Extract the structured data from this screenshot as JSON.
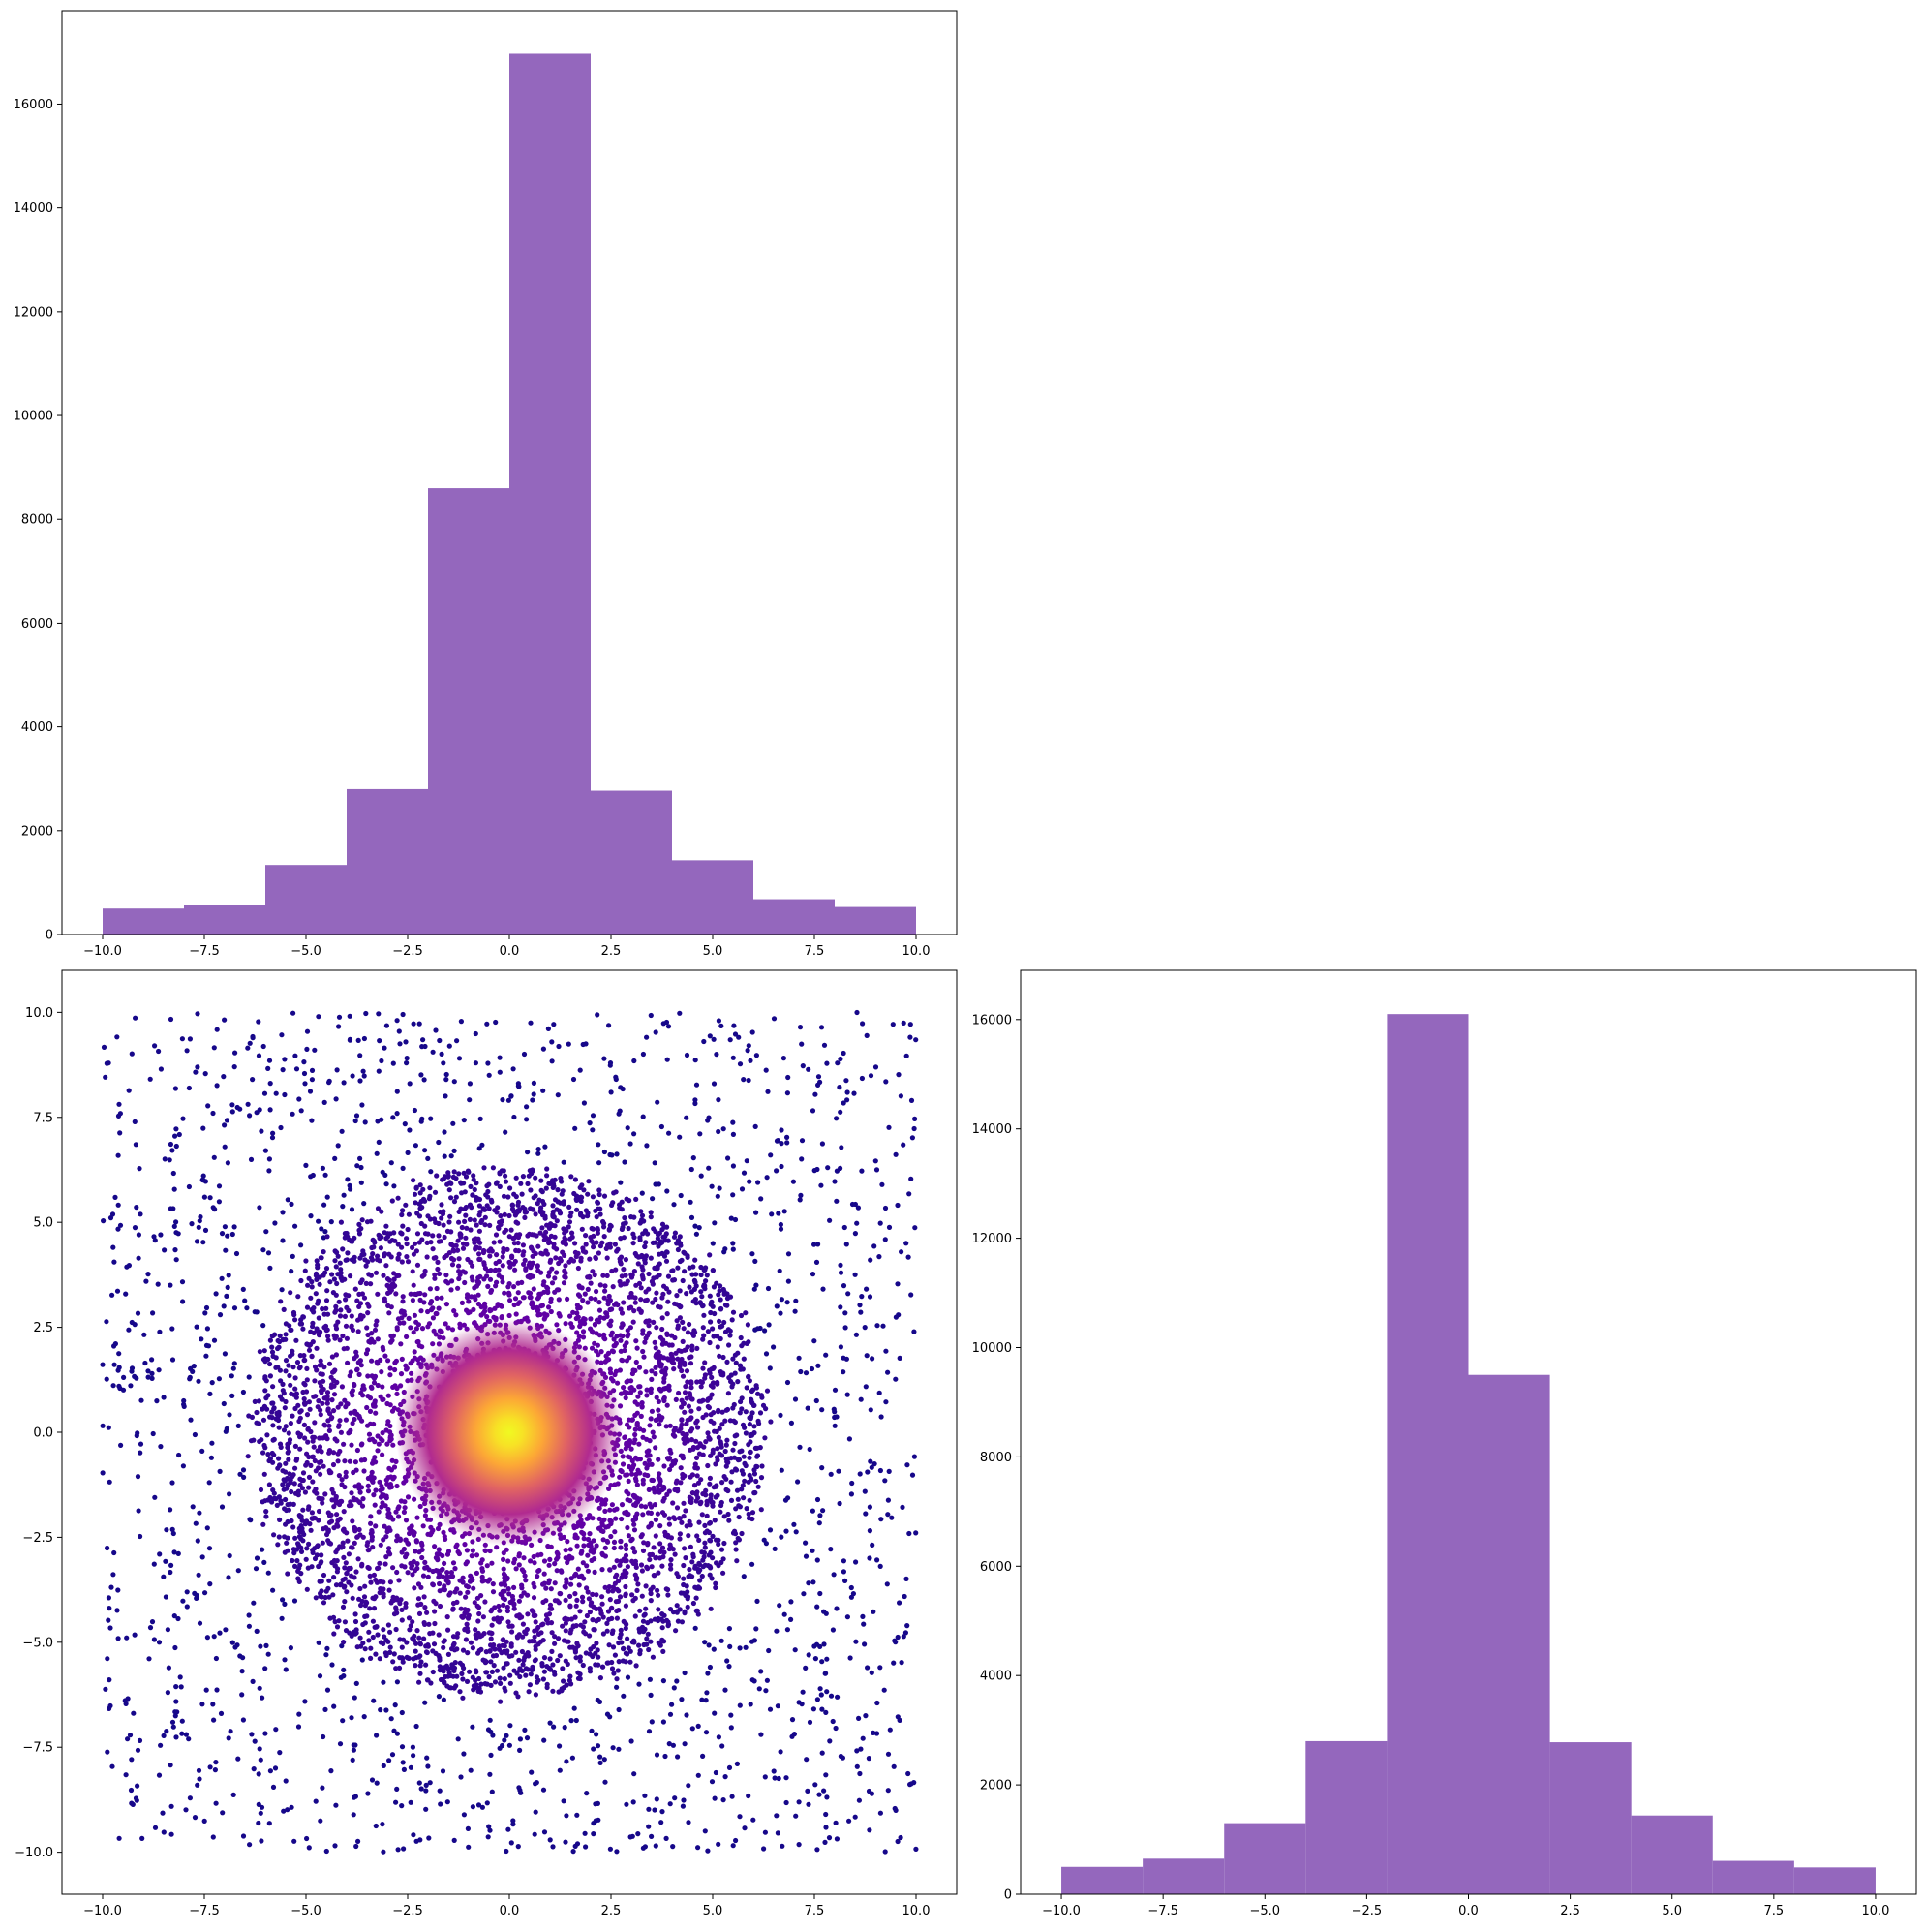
{
  "chart_data": [
    {
      "id": "x-marginal",
      "type": "bar",
      "subtype": "histogram",
      "title": "",
      "xlabel": "",
      "ylabel": "",
      "color": "#9467bd",
      "bin_edges": [
        -10,
        -8,
        -6,
        -4,
        -2,
        0,
        2,
        4,
        6,
        8,
        10
      ],
      "values": [
        500,
        560,
        1340,
        2800,
        8600,
        16970,
        2770,
        1430,
        680,
        530
      ],
      "xlim": [
        -11,
        11
      ],
      "ylim": [
        0,
        17800
      ],
      "xticks": [
        -10,
        -7.5,
        -5,
        -2.5,
        0,
        2.5,
        5,
        7.5,
        10
      ],
      "xtick_labels": [
        "−10.0",
        "−7.5",
        "−5.0",
        "−2.5",
        "0.0",
        "2.5",
        "5.0",
        "7.5",
        "10.0"
      ],
      "yticks": [
        0,
        2000,
        4000,
        6000,
        8000,
        10000,
        12000,
        14000,
        16000
      ],
      "ytick_labels": [
        "0",
        "2000",
        "4000",
        "6000",
        "8000",
        "10000",
        "12000",
        "14000",
        "16000"
      ],
      "grid": false,
      "legend": "none"
    },
    {
      "id": "joint-scatter",
      "type": "scatter",
      "title": "",
      "xlabel": "",
      "ylabel": "",
      "colormap": [
        "#0d0887",
        "#6a00a8",
        "#b12a90",
        "#e16462",
        "#fca636",
        "#f0f921"
      ],
      "color_meaning": "density (low = dark blue-purple, high = yellow at center)",
      "description_of_distribution": "uniform background over [-10,10] x [-10,10] plus dense ring cluster of radius ~6 centered at (0,0) and very dense core at origin",
      "xlim": [
        -11,
        11
      ],
      "ylim": [
        -11,
        11
      ],
      "xticks": [
        -10,
        -7.5,
        -5,
        -2.5,
        0,
        2.5,
        5,
        7.5,
        10
      ],
      "xtick_labels": [
        "−10.0",
        "−7.5",
        "−5.0",
        "−2.5",
        "0.0",
        "2.5",
        "5.0",
        "7.5",
        "10.0"
      ],
      "yticks": [
        -10,
        -7.5,
        -5,
        -2.5,
        0,
        2.5,
        5,
        7.5,
        10
      ],
      "ytick_labels": [
        "−10.0",
        "−7.5",
        "−5.0",
        "−2.5",
        "0.0",
        "2.5",
        "5.0",
        "7.5",
        "10.0"
      ],
      "grid": false,
      "legend": "none"
    },
    {
      "id": "y-marginal",
      "type": "bar",
      "subtype": "histogram",
      "title": "",
      "xlabel": "",
      "ylabel": "",
      "color": "#9467bd",
      "bin_edges": [
        -10,
        -8,
        -6,
        -4,
        -2,
        0,
        2,
        4,
        6,
        8,
        10
      ],
      "values": [
        500,
        650,
        1300,
        2800,
        16100,
        9500,
        2780,
        1440,
        610,
        490
      ],
      "xlim": [
        -11,
        11
      ],
      "ylim": [
        0,
        16900
      ],
      "xticks": [
        -10,
        -7.5,
        -5,
        -2.5,
        0,
        2.5,
        5,
        7.5,
        10
      ],
      "xtick_labels": [
        "−10.0",
        "−7.5",
        "−5.0",
        "−2.5",
        "0.0",
        "2.5",
        "5.0",
        "7.5",
        "10.0"
      ],
      "yticks": [
        0,
        2000,
        4000,
        6000,
        8000,
        10000,
        12000,
        14000,
        16000
      ],
      "ytick_labels": [
        "0",
        "2000",
        "4000",
        "6000",
        "8000",
        "10000",
        "12000",
        "14000",
        "16000"
      ],
      "grid": false,
      "legend": "none"
    }
  ]
}
